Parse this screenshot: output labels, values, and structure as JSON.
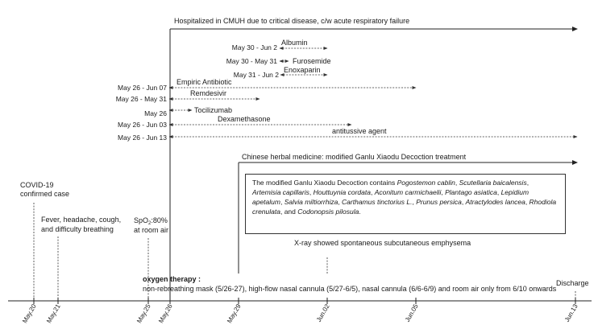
{
  "title": "Hospitalized in CMUH due to critical disease, c/w acute respiratory failure",
  "treatments": [
    {
      "date": "May 30 - Jun 2",
      "name": "Albumin"
    },
    {
      "date": "May 30 - May 31",
      "name": "Furosemide"
    },
    {
      "date": "May 31 - Jun 2",
      "name": "Enoxaparin"
    },
    {
      "date": "May 26 - Jun 07",
      "name": "Empiric Antibiotic"
    },
    {
      "date": "May 26 - May 31",
      "name": "Remdesivir"
    },
    {
      "date": "May 26",
      "name": "Tocilizumab"
    },
    {
      "date": "May 26 - Jun 03",
      "name": "Dexamethasone"
    },
    {
      "date": "May 26 - Jun 13",
      "name": "antitussive agent"
    }
  ],
  "herbal": {
    "heading": "Chinese herbal medicine: modified Ganlu Xiaodu Decoction  treatment",
    "box_intro": "The modified Ganlu Xiaodu Decoction contains",
    "herbs": [
      "Pogostemon cablin",
      "Scutellaria baicalensis",
      "Artemisia capillaris",
      "Houttuynia cordata",
      "Aconitum carmichaelii",
      "Plantago asiatica",
      "Lepidium apetalum",
      "Salvia miltiorrhiza",
      "Carthamus tinctorius L.",
      "Prunus persica",
      "Atractylodes lancea",
      "Rhodiola crenulata",
      "Codonopsis pilosula"
    ]
  },
  "events": {
    "covid": "COVID-19\nconfirmed case",
    "symptoms": "Fever, headache, cough,\nand difficulty breathing",
    "spo2_main": "SpO",
    "spo2_sub": "2",
    "spo2_value": ":80%",
    "spo2_air": "at room air",
    "xray": "X-ray showed spontaneous subcutaneous emphysema",
    "discharge": "Discharge"
  },
  "oxygen": {
    "heading": "oxygen therapy :",
    "detail": "non-rebreathing mask (5/26-27), high-flow nasal cannula (5/27-6/5), nasal cannula (6/6-6/9) and  room air only from 6/10 onwards"
  },
  "axis_ticks": [
    "May.20",
    "May.21",
    "May.25",
    "May.26",
    "May.29",
    "Jun.02",
    "Jun.05",
    "Jun.13"
  ]
}
